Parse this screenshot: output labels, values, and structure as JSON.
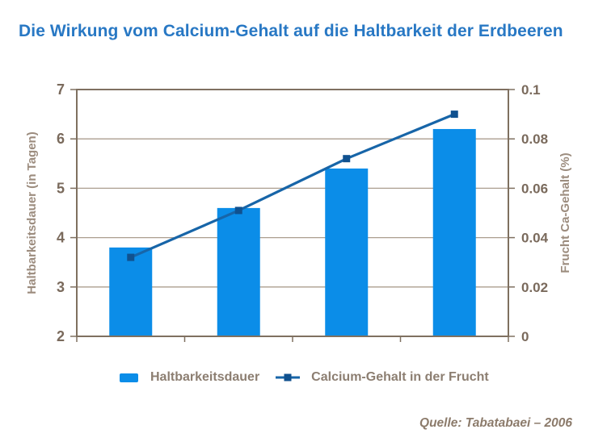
{
  "title": "Die Wirkung vom Calcium-Gehalt auf die Haltbarkeit der Erdbeeren",
  "source": {
    "text": "Quelle: Tabatabaei – 2006"
  },
  "colors": {
    "title": "#2878C4",
    "bar": "#0B8DE8",
    "line": "#1765A8",
    "marker": "#10518F",
    "axis": "#7F7060",
    "grid": "#AB9E8F",
    "tick_label": "#7A6A5C",
    "axis_title": "#9C8C7E",
    "legend_text": "#8C7E71",
    "source_text": "#8C7B6B",
    "background": "#FFFFFF"
  },
  "chart_data": {
    "type": "bar+line",
    "categories": [
      "",
      "",
      "",
      ""
    ],
    "series": [
      {
        "name": "Haltbarkeitsdauer",
        "type": "bar",
        "axis": "left",
        "color": "#0B8DE8",
        "values": [
          3.8,
          4.6,
          5.4,
          6.2
        ]
      },
      {
        "name": "Calcium-Gehalt in der Frucht",
        "type": "line",
        "axis": "right",
        "color": "#1765A8",
        "marker": "square",
        "marker_color": "#10518F",
        "values": [
          0.032,
          0.051,
          0.072,
          0.09
        ]
      }
    ],
    "left_axis": {
      "label": "Haltbarkeitsdauer (in Tagen)",
      "min": 2,
      "max": 7,
      "ticks": [
        2,
        3,
        4,
        5,
        6,
        7
      ],
      "tick_labels": [
        "2",
        "3",
        "4",
        "5",
        "6",
        "7"
      ]
    },
    "right_axis": {
      "label": "Frucht Ca-Gehalt (%)",
      "min": 0,
      "max": 0.1,
      "ticks": [
        0,
        0.02,
        0.04,
        0.06,
        0.08,
        0.1
      ],
      "tick_labels": [
        "0",
        "0.02",
        "0.04",
        "0.06",
        "0.08",
        "0.1"
      ]
    },
    "grid": true,
    "legend_position": "bottom",
    "legend": [
      {
        "label": "Haltbarkeitsdauer",
        "swatch": "bar"
      },
      {
        "label": "Calcium-Gehalt in der Frucht",
        "swatch": "line-marker"
      }
    ]
  }
}
